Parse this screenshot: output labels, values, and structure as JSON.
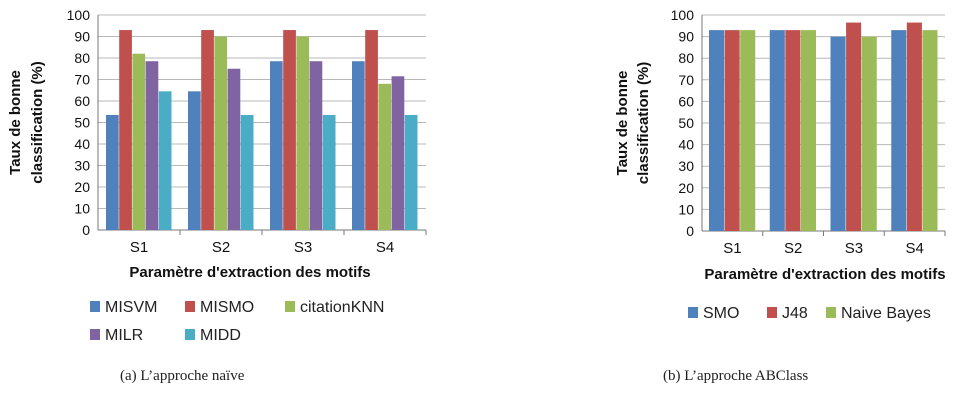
{
  "chart_data": [
    {
      "id": "a",
      "type": "bar",
      "caption": "(a)  L’approche naïve",
      "xlabel": "Paramètre d'extraction des motifs",
      "ylabel_lines": [
        "Taux de bonne",
        "classification (%)"
      ],
      "ylim": [
        0,
        100
      ],
      "yticks": [
        0,
        10,
        20,
        30,
        40,
        50,
        60,
        70,
        80,
        90,
        100
      ],
      "grid": true,
      "legend_position": "bottom",
      "categories": [
        "S1",
        "S2",
        "S3",
        "S4"
      ],
      "series": [
        {
          "name": "MISVM",
          "color": "#4f81bd",
          "values": [
            53.5,
            64.5,
            78.5,
            78.5
          ]
        },
        {
          "name": "MISMO",
          "color": "#c0504d",
          "values": [
            93,
            93,
            93,
            93
          ]
        },
        {
          "name": "citationKNN",
          "color": "#9bbb59",
          "values": [
            82,
            90,
            90,
            68
          ]
        },
        {
          "name": "MILR",
          "color": "#8064a2",
          "values": [
            78.5,
            75,
            78.5,
            71.5
          ]
        },
        {
          "name": "MIDD",
          "color": "#4bacc6",
          "values": [
            64.5,
            53.5,
            53.5,
            53.5
          ]
        }
      ]
    },
    {
      "id": "b",
      "type": "bar",
      "caption": "(b)  L’approche ABClass",
      "xlabel": "Paramètre d'extraction des motifs",
      "ylabel_lines": [
        "Taux de bonne",
        "classification (%)"
      ],
      "ylim": [
        0,
        100
      ],
      "yticks": [
        0,
        10,
        20,
        30,
        40,
        50,
        60,
        70,
        80,
        90,
        100
      ],
      "grid": true,
      "legend_position": "bottom",
      "categories": [
        "S1",
        "S2",
        "S3",
        "S4"
      ],
      "series": [
        {
          "name": "SMO",
          "color": "#4f81bd",
          "values": [
            93,
            93,
            90,
            93
          ]
        },
        {
          "name": "J48",
          "color": "#c0504d",
          "values": [
            93,
            93,
            96.5,
            96.5
          ]
        },
        {
          "name": "Naive Bayes",
          "color": "#9bbb59",
          "values": [
            93,
            93,
            90,
            93
          ]
        }
      ]
    }
  ]
}
